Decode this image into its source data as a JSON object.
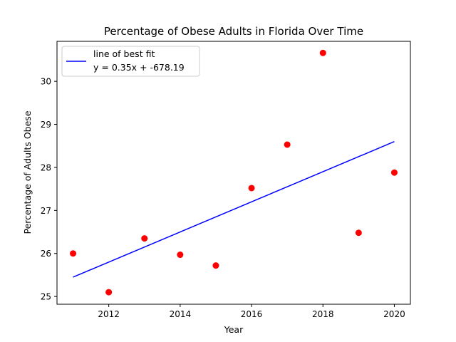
{
  "chart_data": {
    "type": "scatter",
    "title": "Percentage of Obese Adults in Florida Over Time",
    "xlabel": "Year",
    "ylabel": "Percentage of Adults Obese",
    "xlim": [
      2010.55,
      2020.45
    ],
    "ylim": [
      24.82,
      30.93
    ],
    "x_ticks": [
      2012,
      2014,
      2016,
      2018,
      2020
    ],
    "y_ticks": [
      25,
      26,
      27,
      28,
      29,
      30
    ],
    "grid": false,
    "legend_position": "top-left",
    "series": [
      {
        "type": "scatter",
        "color": "#ff0000",
        "x": [
          2011,
          2012,
          2013,
          2014,
          2015,
          2016,
          2017,
          2018,
          2019,
          2020
        ],
        "y": [
          26.0,
          25.1,
          26.35,
          25.97,
          25.72,
          27.52,
          28.53,
          30.66,
          26.48,
          27.88
        ]
      },
      {
        "type": "line",
        "name": "line of best fit",
        "color": "#0000ff",
        "x": [
          2011,
          2020
        ],
        "y": [
          25.45,
          28.6
        ]
      }
    ],
    "legend": {
      "label": "line of best fit",
      "equation": "y = 0.35x + -678.19"
    }
  }
}
